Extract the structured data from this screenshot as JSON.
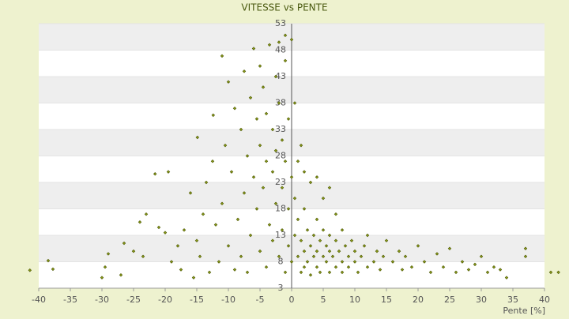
{
  "chart_data": {
    "type": "scatter",
    "title": "VITESSE vs PENTE",
    "x_label": "Pente [%]",
    "color": "#8a9a1a",
    "xlim": [
      -40,
      40
    ],
    "xticks": [
      -40,
      -35,
      -30,
      -25,
      -20,
      -15,
      -10,
      -5,
      0,
      5,
      10,
      15,
      20,
      25,
      30,
      35,
      40
    ],
    "ylim": [
      3,
      53
    ],
    "yticks": [
      3,
      8,
      13,
      18,
      23,
      28,
      33,
      38,
      43,
      48,
      53
    ],
    "bands": true,
    "x": [
      -41.4,
      -38.5,
      -37.75,
      -30,
      -29.5,
      -29,
      -27,
      -26.5,
      -25,
      -24,
      -23.5,
      -23,
      -21.6,
      -21,
      -20,
      -19.5,
      -19,
      -18,
      -17.5,
      -17,
      -16,
      -15.5,
      -15,
      -14.9,
      -14.5,
      -14,
      -13.5,
      -13,
      -12.5,
      -12.4,
      -12,
      -11.5,
      -11,
      -11,
      -10.5,
      -10,
      -10,
      -9.5,
      -9,
      -9,
      -8.5,
      -8,
      -8,
      -7.5,
      -7.5,
      -7,
      -7,
      -6.5,
      -6.5,
      -6,
      -6,
      -5.5,
      -5.5,
      -5,
      -5,
      -5,
      -4.5,
      -4.5,
      -4,
      -4,
      -4,
      -3.5,
      -3.5,
      -3,
      -3,
      -3,
      -2.5,
      -2.5,
      -2.5,
      -2,
      -2,
      -2,
      -1.5,
      -1.5,
      -1.5,
      -1,
      -1,
      -1,
      -1,
      -0.5,
      -0.5,
      -0.5,
      0,
      0,
      0,
      0.5,
      0.5,
      0.5,
      1,
      1,
      1,
      1.5,
      1.5,
      1.5,
      2,
      2,
      2,
      2,
      2.5,
      2.5,
      3,
      3,
      3,
      3.5,
      3.5,
      4,
      4,
      4,
      4,
      4.5,
      4.5,
      5,
      5,
      5,
      5.5,
      5.5,
      6,
      6,
      6,
      6,
      6.5,
      7,
      7,
      7,
      7.5,
      8,
      8,
      8,
      8.5,
      9,
      9,
      9.5,
      10,
      10,
      10.5,
      11,
      11.5,
      12,
      12,
      13,
      13.5,
      14,
      14.5,
      15,
      16,
      17,
      17.5,
      18,
      19,
      20,
      21,
      22,
      23,
      24,
      25,
      26,
      27,
      28,
      29,
      30,
      31,
      32,
      33,
      34,
      37,
      37,
      41,
      42.2
    ],
    "values": [
      6.4,
      8.2,
      6.6,
      5,
      7,
      9.5,
      5.5,
      11.5,
      10,
      15.5,
      9,
      17,
      24.6,
      14.5,
      13.5,
      25,
      8,
      11,
      6.5,
      14,
      21,
      5,
      12,
      31.5,
      9,
      17,
      23,
      6,
      27,
      35.7,
      15,
      8,
      19,
      46.9,
      30,
      11,
      42,
      25,
      6.5,
      37,
      16,
      33,
      9,
      44,
      21,
      28,
      6,
      39,
      13,
      24,
      48.3,
      35,
      18,
      45,
      10,
      30,
      41,
      22,
      27,
      7,
      36,
      49,
      15,
      33,
      25,
      12,
      43,
      29,
      19,
      49.5,
      38,
      9,
      31,
      22,
      14,
      46,
      50.8,
      27,
      6,
      35,
      18,
      11,
      24,
      8,
      50,
      13,
      20,
      38,
      9,
      16,
      27,
      6,
      12,
      30,
      10,
      18,
      7,
      25,
      14,
      8,
      11,
      5.5,
      23,
      9,
      13,
      7,
      10,
      16,
      24,
      12,
      6,
      9,
      14,
      20,
      8,
      11,
      6,
      10,
      13,
      22,
      9,
      7,
      12,
      17,
      10,
      8,
      6,
      14,
      11,
      9,
      7,
      12,
      8,
      10,
      6,
      9,
      11,
      7,
      13,
      8,
      10,
      6.5,
      9,
      12,
      8,
      10,
      6.5,
      9,
      7,
      11,
      8,
      6,
      9.5,
      7,
      10.5,
      6,
      8,
      6.5,
      7.5,
      9,
      6,
      7,
      6.5,
      5,
      9,
      10.5,
      6,
      6
    ]
  }
}
